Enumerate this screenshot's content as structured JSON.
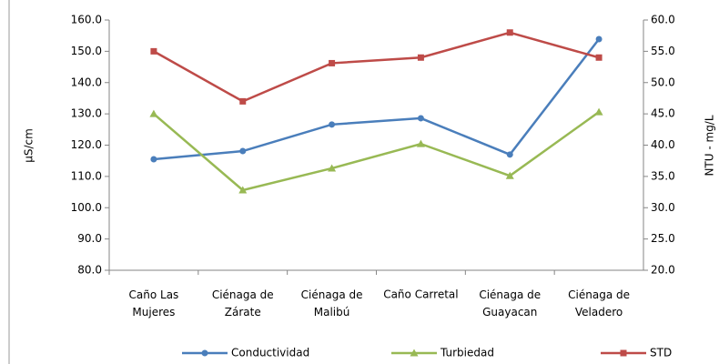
{
  "chart_data": {
    "type": "line",
    "categories": [
      "Caño Las\nMujeres",
      "Ciénaga de\nZárate",
      "Ciénaga de\nMalibú",
      "Caño Carretal",
      "Ciénaga de\nGuayacan",
      "Ciénaga de\nVeladero"
    ],
    "series": [
      {
        "name": "Conductividad",
        "color": "#4a7ebb",
        "marker": "circle",
        "values": [
          115.5,
          118.1,
          126.6,
          128.6,
          117.0,
          153.9
        ]
      },
      {
        "name": "Turbiedad",
        "color": "#98b954",
        "marker": "triangle",
        "axis": "y2",
        "values": [
          45.0,
          32.8,
          36.3,
          40.2,
          35.1,
          45.3
        ]
      },
      {
        "name": "STD",
        "color": "#be4b48",
        "marker": "square",
        "axis": "y2",
        "values": [
          55.0,
          47.0,
          53.1,
          54.0,
          58.0,
          54.0
        ]
      }
    ],
    "ylabel": "µS/cm",
    "y2label": "NTU - mg/L",
    "ylim": [
      80,
      160
    ],
    "yticks": [
      {
        "value": 80,
        "label": "80.0"
      },
      {
        "value": 90,
        "label": "90.0"
      },
      {
        "value": 100,
        "label": "100.0"
      },
      {
        "value": 110,
        "label": "110.0"
      },
      {
        "value": 120,
        "label": "120.0"
      },
      {
        "value": 130,
        "label": "130.0"
      },
      {
        "value": 140,
        "label": "140.0"
      },
      {
        "value": 150,
        "label": "150.0"
      },
      {
        "value": 160,
        "label": "160.0"
      }
    ],
    "y2lim": [
      20,
      60
    ],
    "y2ticks": [
      {
        "value": 20,
        "label": "20.0"
      },
      {
        "value": 25,
        "label": "25.0"
      },
      {
        "value": 30,
        "label": "30.0"
      },
      {
        "value": 35,
        "label": "35.0"
      },
      {
        "value": 40,
        "label": "40.0"
      },
      {
        "value": 45,
        "label": "45.0"
      },
      {
        "value": 50,
        "label": "50.0"
      },
      {
        "value": 55,
        "label": "55.0"
      },
      {
        "value": 60,
        "label": "60.0"
      }
    ],
    "legend": "bottom"
  }
}
